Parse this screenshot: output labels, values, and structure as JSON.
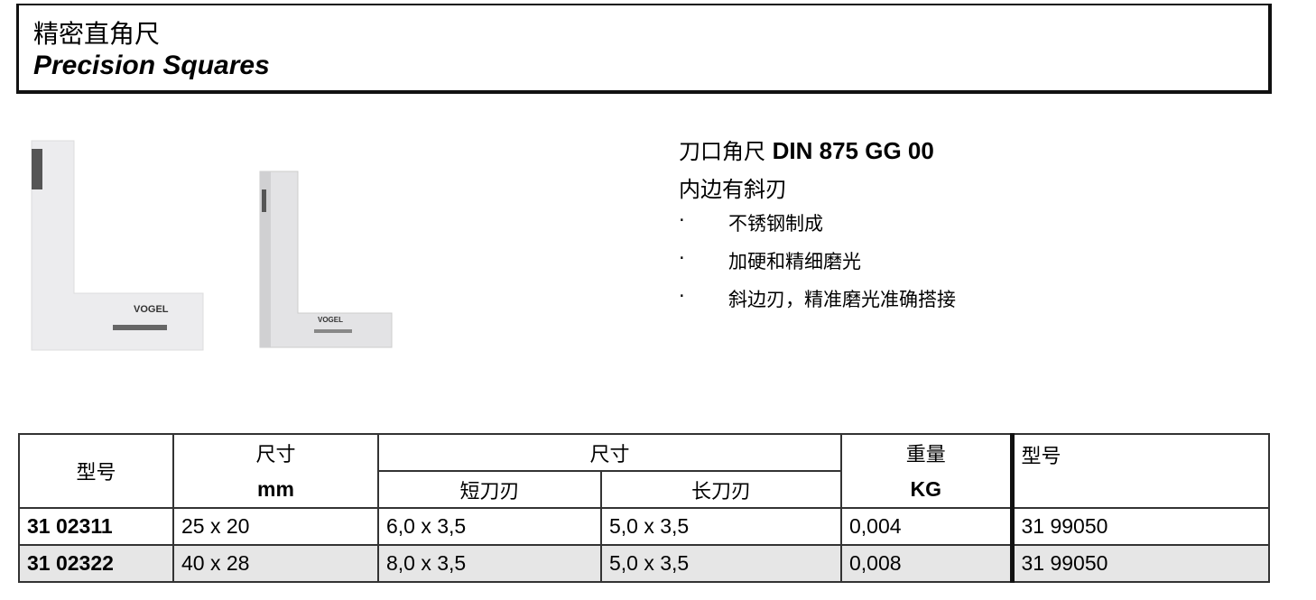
{
  "header": {
    "title_cn": "精密直角尺",
    "title_en": "Precision Squares"
  },
  "product": {
    "title_cn": "刀口角尺",
    "title_std": "DIN 875 GG 00",
    "subtitle": "内边有斜刃",
    "bullet": "·",
    "features": [
      "不锈钢制成",
      "加硬和精细磨光",
      "斜边刃，精准磨光准确搭接"
    ],
    "image_logo": "VOGEL"
  },
  "table": {
    "headers": {
      "model": "型号",
      "size": "尺寸",
      "size_unit": "mm",
      "blade": "尺寸",
      "short_blade": "短刀刃",
      "long_blade": "长刀刃",
      "weight": "重量",
      "weight_unit": "KG",
      "model2": "型号"
    },
    "rows": [
      {
        "model": "31 02311",
        "size": "25 x 20",
        "short": "6,0 x 3,5",
        "long": "5,0 x 3,5",
        "weight": "0,004",
        "model2": "31 99050"
      },
      {
        "model": "31 02322",
        "size": "40 x 28",
        "short": "8,0 x 3,5",
        "long": "5,0 x 3,5",
        "weight": "0,008",
        "model2": "31 99050"
      }
    ]
  }
}
